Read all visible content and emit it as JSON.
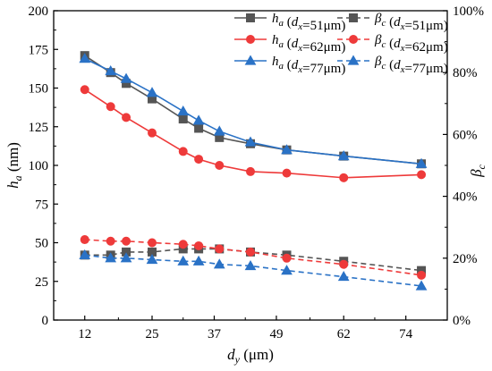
{
  "chart_data": {
    "type": "line",
    "x": [
      12,
      17,
      20,
      25,
      31,
      34,
      38,
      44,
      51,
      62,
      77
    ],
    "xticks": [
      "12",
      "25",
      "37",
      "49",
      "62",
      "74"
    ],
    "xlim": [
      6,
      82
    ],
    "xlabel": {
      "main": "d",
      "sub": "y",
      "unit": " (μm)"
    },
    "ylabel_left": {
      "main": "h",
      "sub": "a",
      "unit": " (nm)"
    },
    "ylabel_right": {
      "main": "β",
      "sub": "c",
      "unit": ""
    },
    "ylim_left": [
      0,
      200
    ],
    "yticks_left": [
      "0",
      "25",
      "50",
      "75",
      "100",
      "125",
      "150",
      "175",
      "200"
    ],
    "ylim_right": [
      0,
      100
    ],
    "yticks_right": [
      "0%",
      "20%",
      "40%",
      "60%",
      "80%",
      "100%"
    ],
    "series": [
      {
        "name": "h_a (d_x=51μm)",
        "legend": {
          "var": "h",
          "vsub": "a",
          "cond": "d",
          "csub": "x",
          "val": "=51μm"
        },
        "axis": "left",
        "color": "#555555",
        "marker": "square",
        "dash": false,
        "values": [
          171,
          160,
          153,
          143,
          130,
          124,
          118,
          114,
          110,
          106,
          101
        ]
      },
      {
        "name": "h_a (d_x=62μm)",
        "legend": {
          "var": "h",
          "vsub": "a",
          "cond": "d",
          "csub": "x",
          "val": "=62μm"
        },
        "axis": "left",
        "color": "#ee3a3a",
        "marker": "circle",
        "dash": false,
        "values": [
          149,
          138,
          131,
          121,
          109,
          104,
          100,
          96,
          95,
          92,
          94
        ]
      },
      {
        "name": "h_a (d_x=77μm)",
        "legend": {
          "var": "h",
          "vsub": "a",
          "cond": "d",
          "csub": "x",
          "val": "=77μm"
        },
        "axis": "left",
        "color": "#2a72c6",
        "marker": "triangle",
        "dash": false,
        "values": [
          169,
          161,
          156,
          147,
          135,
          129,
          122,
          115,
          110,
          106,
          101
        ]
      },
      {
        "name": "β_c (d_x=51μm)",
        "legend": {
          "var": "β",
          "vsub": "c",
          "cond": "d",
          "csub": "x",
          "val": "=51μm"
        },
        "axis": "right",
        "color": "#555555",
        "marker": "square",
        "dash": true,
        "values": [
          21,
          21,
          22,
          22,
          23,
          23,
          23,
          22,
          21,
          19,
          16
        ]
      },
      {
        "name": "β_c (d_x=62μm)",
        "legend": {
          "var": "β",
          "vsub": "c",
          "cond": "d",
          "csub": "x",
          "val": "=62μm"
        },
        "axis": "right",
        "color": "#ee3a3a",
        "marker": "circle",
        "dash": true,
        "values": [
          26,
          25.5,
          25.5,
          25,
          24.5,
          24,
          23,
          22,
          20,
          18,
          14.5
        ]
      },
      {
        "name": "β_c (d_x=77μm)",
        "legend": {
          "var": "β",
          "vsub": "c",
          "cond": "d",
          "csub": "x",
          "val": "=77μm"
        },
        "axis": "right",
        "color": "#2a72c6",
        "marker": "triangle",
        "dash": true,
        "values": [
          21,
          20,
          20,
          19.5,
          19,
          19,
          18,
          17.5,
          16,
          14,
          11
        ]
      }
    ],
    "legend_position": "top-right",
    "grid": false
  }
}
